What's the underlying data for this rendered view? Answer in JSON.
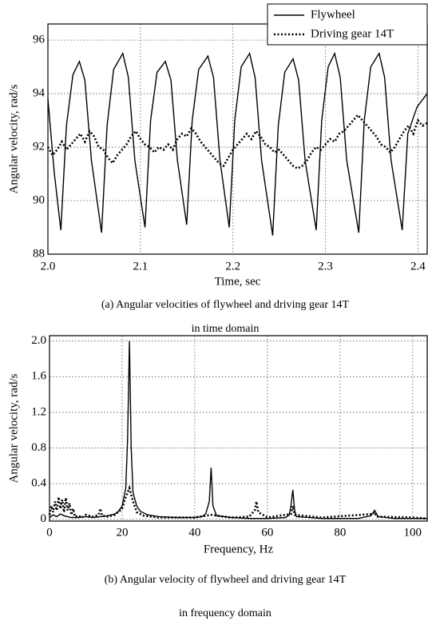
{
  "chart_data": [
    {
      "type": "line",
      "caption": [
        "(a) Angular velocities of flywheel and driving gear 14T",
        "in time domain"
      ],
      "x_label": "Time, sec",
      "y_label": "Angular velocity, rad/s",
      "xlim": [
        2.0,
        2.41
      ],
      "ylim": [
        88,
        96.6
      ],
      "xticks": [
        {
          "value": 2.0,
          "label": "2.0"
        },
        2.1,
        2.2,
        2.3,
        2.4
      ],
      "yticks": [
        88,
        90,
        92,
        94,
        96
      ],
      "grid": true,
      "legend": "upper right",
      "series": [
        {
          "name": "Flywheel",
          "color": "#000000",
          "style": "solid",
          "x": [
            2.0,
            2.007,
            2.014,
            2.02,
            2.027,
            2.034,
            2.04,
            2.047,
            2.058,
            2.064,
            2.071,
            2.081,
            2.087,
            2.094,
            2.105,
            2.111,
            2.118,
            2.127,
            2.133,
            2.14,
            2.15,
            2.156,
            2.163,
            2.173,
            2.179,
            2.186,
            2.196,
            2.202,
            2.209,
            2.218,
            2.224,
            2.231,
            2.243,
            2.249,
            2.256,
            2.265,
            2.271,
            2.278,
            2.29,
            2.296,
            2.303,
            2.31,
            2.316,
            2.323,
            2.336,
            2.342,
            2.349,
            2.358,
            2.364,
            2.371,
            2.383,
            2.389,
            2.399,
            2.41
          ],
          "values": [
            93.8,
            91.0,
            88.9,
            92.8,
            94.7,
            95.2,
            94.5,
            91.5,
            88.8,
            92.8,
            94.9,
            95.5,
            94.6,
            91.5,
            89.0,
            93.0,
            94.8,
            95.2,
            94.5,
            91.5,
            89.1,
            93.0,
            94.9,
            95.4,
            94.6,
            91.5,
            89.0,
            93.0,
            95.0,
            95.5,
            94.6,
            91.5,
            88.7,
            92.8,
            94.8,
            95.3,
            94.5,
            91.5,
            88.9,
            93.0,
            95.0,
            95.5,
            94.6,
            91.5,
            88.8,
            93.0,
            95.0,
            95.5,
            94.6,
            91.5,
            88.9,
            92.5,
            93.5,
            94.0
          ]
        },
        {
          "name": "Driving gear 14T",
          "color": "#000000",
          "style": "dotted",
          "x": [
            2.0,
            2.005,
            2.01,
            2.015,
            2.02,
            2.025,
            2.03,
            2.035,
            2.04,
            2.045,
            2.05,
            2.055,
            2.06,
            2.065,
            2.07,
            2.075,
            2.08,
            2.085,
            2.09,
            2.095,
            2.1,
            2.105,
            2.11,
            2.115,
            2.12,
            2.125,
            2.13,
            2.135,
            2.14,
            2.145,
            2.15,
            2.155,
            2.16,
            2.165,
            2.17,
            2.175,
            2.18,
            2.185,
            2.19,
            2.195,
            2.2,
            2.205,
            2.21,
            2.215,
            2.22,
            2.225,
            2.23,
            2.235,
            2.24,
            2.245,
            2.25,
            2.255,
            2.26,
            2.265,
            2.27,
            2.275,
            2.28,
            2.285,
            2.29,
            2.295,
            2.3,
            2.305,
            2.31,
            2.315,
            2.32,
            2.325,
            2.33,
            2.335,
            2.34,
            2.345,
            2.35,
            2.355,
            2.36,
            2.365,
            2.37,
            2.375,
            2.38,
            2.385,
            2.39,
            2.395,
            2.4,
            2.405,
            2.41
          ],
          "values": [
            92.0,
            91.7,
            91.9,
            92.2,
            91.9,
            92.1,
            92.3,
            92.5,
            92.2,
            92.6,
            92.4,
            92.0,
            91.9,
            91.6,
            91.4,
            91.7,
            91.9,
            92.1,
            92.4,
            92.6,
            92.3,
            92.1,
            92.0,
            91.8,
            92.0,
            91.9,
            92.1,
            91.9,
            92.3,
            92.5,
            92.4,
            92.7,
            92.5,
            92.2,
            92.0,
            91.8,
            91.6,
            91.4,
            91.3,
            91.6,
            91.9,
            92.1,
            92.3,
            92.5,
            92.3,
            92.6,
            92.4,
            92.1,
            92.0,
            91.8,
            91.9,
            91.7,
            91.5,
            91.3,
            91.2,
            91.3,
            91.5,
            91.8,
            92.0,
            91.9,
            92.1,
            92.3,
            92.2,
            92.5,
            92.6,
            92.8,
            93.0,
            93.2,
            93.0,
            92.8,
            92.6,
            92.4,
            92.1,
            92.0,
            91.8,
            92.0,
            92.3,
            92.6,
            92.8,
            92.5,
            93.0,
            92.8,
            92.9
          ]
        }
      ]
    },
    {
      "type": "line",
      "caption": [
        "(b) Angular velocity of flywheel and driving gear 14T",
        "in frequency domain"
      ],
      "x_label": "Frequency, Hz",
      "y_label": "Angular velocity, rad/s",
      "xlim": [
        0,
        104
      ],
      "ylim": [
        -0.02,
        2.06
      ],
      "xticks": [
        0,
        20,
        40,
        60,
        80,
        100
      ],
      "yticks": [
        0,
        0.4,
        0.8,
        1.2,
        1.6,
        {
          "value": 2.0,
          "label": "2.0"
        }
      ],
      "grid": true,
      "series": [
        {
          "color": "#000000",
          "style": "solid",
          "x": [
            0,
            1,
            2,
            3,
            4,
            5,
            6,
            8,
            10,
            12,
            14,
            16,
            18,
            19,
            20,
            21,
            21.5,
            22,
            22.5,
            23,
            24,
            25,
            27,
            30,
            35,
            40,
            42,
            43,
            44,
            44.5,
            45,
            46,
            50,
            55,
            60,
            65,
            66,
            66.5,
            67,
            67.5,
            68,
            75,
            85,
            88.5,
            89.5,
            90.5,
            95,
            104
          ],
          "values": [
            0.02,
            0.05,
            0.03,
            0.06,
            0.04,
            0.03,
            0.02,
            0.02,
            0.03,
            0.02,
            0.03,
            0.04,
            0.06,
            0.09,
            0.15,
            0.35,
            0.9,
            2.0,
            0.8,
            0.3,
            0.15,
            0.09,
            0.05,
            0.03,
            0.02,
            0.02,
            0.03,
            0.06,
            0.2,
            0.58,
            0.15,
            0.04,
            0.02,
            0.01,
            0.01,
            0.02,
            0.05,
            0.15,
            0.33,
            0.1,
            0.03,
            0.01,
            0.01,
            0.04,
            0.1,
            0.03,
            0.01,
            0.01
          ]
        },
        {
          "color": "#000000",
          "style": "dotted",
          "x": [
            0,
            0.5,
            1,
            1.5,
            2,
            2.5,
            3,
            3.5,
            4,
            4.5,
            5,
            5.5,
            6,
            6.5,
            7,
            8,
            9,
            10,
            12,
            13.5,
            14,
            14.5,
            16,
            18,
            20,
            21,
            22,
            23,
            24,
            26,
            30,
            40,
            44.5,
            50,
            55,
            56.5,
            57,
            57.5,
            60,
            66.5,
            67,
            67.5,
            75,
            89,
            89.5,
            90,
            100,
            104
          ],
          "values": [
            0.05,
            0.15,
            0.08,
            0.2,
            0.1,
            0.25,
            0.12,
            0.22,
            0.08,
            0.24,
            0.1,
            0.18,
            0.05,
            0.12,
            0.03,
            0.04,
            0.02,
            0.05,
            0.03,
            0.05,
            0.12,
            0.04,
            0.03,
            0.05,
            0.12,
            0.25,
            0.35,
            0.2,
            0.08,
            0.04,
            0.02,
            0.02,
            0.05,
            0.02,
            0.03,
            0.1,
            0.2,
            0.08,
            0.02,
            0.06,
            0.15,
            0.05,
            0.02,
            0.06,
            0.08,
            0.03,
            0.02,
            0.01
          ]
        }
      ]
    }
  ]
}
